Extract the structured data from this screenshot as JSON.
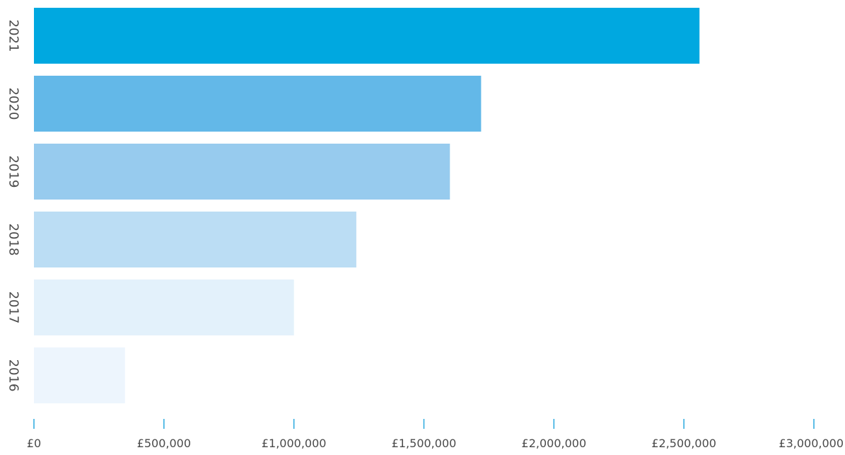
{
  "chart_data": {
    "type": "bar",
    "orientation": "horizontal",
    "categories": [
      "2021",
      "2020",
      "2019",
      "2018",
      "2017",
      "2016"
    ],
    "values": [
      2560000,
      1720000,
      1600000,
      1240000,
      1000000,
      350000
    ],
    "bar_colors": [
      "#00a8e0",
      "#63b8e8",
      "#97cbee",
      "#bbddf4",
      "#e3f1fb",
      "#edf5fd"
    ],
    "title": "",
    "xlabel": "",
    "ylabel": "",
    "xlim": [
      0,
      3000000
    ],
    "x_ticks": [
      0,
      500000,
      1000000,
      1500000,
      2000000,
      2500000,
      3000000
    ],
    "x_tick_labels": [
      "£0",
      "£500,000",
      "£1,000,000",
      "£1,500,000",
      "£2,000,000",
      "£2,500,000",
      "£3,000,000"
    ],
    "tick_color": "#29a9df",
    "label_color": "#4a4a4a",
    "grid": false,
    "legend": "none"
  }
}
